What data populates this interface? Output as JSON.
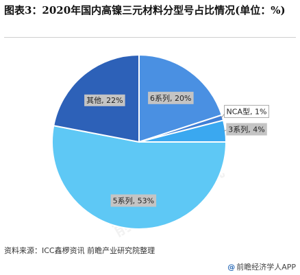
{
  "title": "图表3：2020年国内高镍三元材料分型号占比情况(单位：%)",
  "source": "资料来源：ICC鑫椤资讯 前瞻产业研究院整理",
  "brand": {
    "at_symbol": "@",
    "text": "前瞻经济学人APP"
  },
  "watermark": "前瞻产业研究院",
  "colors": {
    "slice_6": "#4a90e2",
    "slice_nca": "#3f7fd6",
    "slice_3": "#3aa8f0",
    "slice_5": "#5ec8f5",
    "slice_other": "#2d61b8",
    "label_bg": "#c4c4c4",
    "label_bg_white": "#ffffff"
  },
  "chart_data": {
    "type": "pie",
    "title": "图表3：2020年国内高镍三元材料分型号占比情况(单位：%)",
    "series": [
      {
        "name": "6系列",
        "value": 20,
        "label": "6系列, 20%"
      },
      {
        "name": "NCA型",
        "value": 1,
        "label": "NCA型, 1%"
      },
      {
        "name": "3系列",
        "value": 4,
        "label": "3系列, 4%"
      },
      {
        "name": "5系列",
        "value": 53,
        "label": "5系列, 53%"
      },
      {
        "name": "其他",
        "value": 22,
        "label": "其他, 22%"
      }
    ]
  }
}
